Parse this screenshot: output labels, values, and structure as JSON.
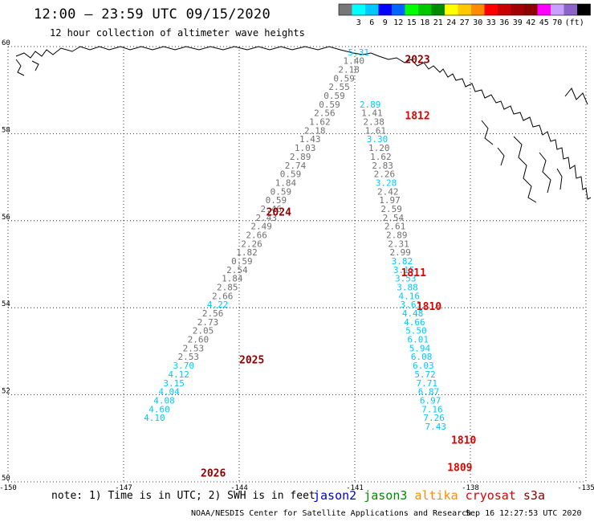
{
  "header": {
    "title": "12:00 – 23:59 UTC 09/15/2020",
    "subtitle": "12 hour collection of altimeter wave heights"
  },
  "scale": {
    "unit": "(ft)",
    "colors": [
      "#777777",
      "#00ffff",
      "#00c8ff",
      "#0000ff",
      "#0064ff",
      "#00ff00",
      "#00c800",
      "#008c00",
      "#ffff00",
      "#ffc800",
      "#ff8c00",
      "#ff0000",
      "#c80000",
      "#a00000",
      "#8c0000",
      "#ff00ff",
      "#c8a0ff",
      "#8c64c8",
      "#000000"
    ],
    "labels": [
      "3",
      "6",
      "9",
      "12",
      "15",
      "18",
      "21",
      "24",
      "27",
      "30",
      "33",
      "36",
      "39",
      "42",
      "45",
      "70"
    ]
  },
  "map": {
    "lon_range": [
      -150,
      -135
    ],
    "lat_range": [
      50,
      60
    ],
    "lon_ticks": [
      "-150",
      "-147",
      "-144",
      "-141",
      "-138",
      "-135"
    ],
    "lat_ticks": [
      "60",
      "58",
      "56",
      "54",
      "52",
      "50"
    ]
  },
  "track_left": [
    {
      "v": "5.31",
      "lat": 59.8,
      "c": "#00c8ff"
    },
    {
      "v": "1.40",
      "lat": 59.6,
      "c": "#707070"
    },
    {
      "v": "2.18",
      "lat": 59.4,
      "c": "#707070"
    },
    {
      "v": "0.59",
      "lat": 59.2,
      "c": "#707070"
    },
    {
      "v": "2.55",
      "lat": 59.0,
      "c": "#707070"
    },
    {
      "v": "0.59",
      "lat": 58.8,
      "c": "#707070"
    },
    {
      "v": "0.59",
      "lat": 58.6,
      "c": "#707070"
    },
    {
      "v": "2.56",
      "lat": 58.4,
      "c": "#707070"
    },
    {
      "v": "1.62",
      "lat": 58.2,
      "c": "#707070"
    },
    {
      "v": "2.18",
      "lat": 58.0,
      "c": "#707070"
    },
    {
      "v": "1.43",
      "lat": 57.8,
      "c": "#707070"
    },
    {
      "v": "1.03",
      "lat": 57.6,
      "c": "#707070"
    },
    {
      "v": "2.89",
      "lat": 57.4,
      "c": "#707070"
    },
    {
      "v": "2.74",
      "lat": 57.2,
      "c": "#707070"
    },
    {
      "v": "0.59",
      "lat": 57.0,
      "c": "#707070"
    },
    {
      "v": "1.84",
      "lat": 56.8,
      "c": "#707070"
    },
    {
      "v": "0.59",
      "lat": 56.6,
      "c": "#707070"
    },
    {
      "v": "0.59",
      "lat": 56.4,
      "c": "#707070"
    },
    {
      "v": "2.46",
      "lat": 56.2,
      "c": "#707070"
    },
    {
      "v": "2.43",
      "lat": 56.0,
      "c": "#707070"
    },
    {
      "v": "2.49",
      "lat": 55.8,
      "c": "#707070"
    },
    {
      "v": "2.66",
      "lat": 55.6,
      "c": "#707070"
    },
    {
      "v": "2.26",
      "lat": 55.4,
      "c": "#707070"
    },
    {
      "v": "1.82",
      "lat": 55.2,
      "c": "#707070"
    },
    {
      "v": "0.59",
      "lat": 55.0,
      "c": "#707070"
    },
    {
      "v": "2.54",
      "lat": 54.8,
      "c": "#707070"
    },
    {
      "v": "1.84",
      "lat": 54.6,
      "c": "#707070"
    },
    {
      "v": "2.85",
      "lat": 54.4,
      "c": "#707070"
    },
    {
      "v": "2.66",
      "lat": 54.2,
      "c": "#707070"
    },
    {
      "v": "4.22",
      "lat": 54.0,
      "c": "#00c8ff"
    },
    {
      "v": "2.56",
      "lat": 53.8,
      "c": "#707070"
    },
    {
      "v": "2.73",
      "lat": 53.6,
      "c": "#707070"
    },
    {
      "v": "2.05",
      "lat": 53.4,
      "c": "#707070"
    },
    {
      "v": "2.60",
      "lat": 53.2,
      "c": "#707070"
    },
    {
      "v": "2.53",
      "lat": 53.0,
      "c": "#707070"
    },
    {
      "v": "2.53",
      "lat": 52.8,
      "c": "#707070"
    },
    {
      "v": "3.70",
      "lat": 52.6,
      "c": "#00c8ff"
    },
    {
      "v": "4.12",
      "lat": 52.4,
      "c": "#00c8ff"
    },
    {
      "v": "3.15",
      "lat": 52.2,
      "c": "#00c8ff"
    },
    {
      "v": "4.04",
      "lat": 52.0,
      "c": "#00c8ff"
    },
    {
      "v": "4.08",
      "lat": 51.8,
      "c": "#00c8ff"
    },
    {
      "v": "4.60",
      "lat": 51.6,
      "c": "#00c8ff"
    },
    {
      "v": "4.10",
      "lat": 51.4,
      "c": "#00c8ff"
    }
  ],
  "track_right": [
    {
      "v": "2.89",
      "lat": 58.6,
      "c": "#00c8ff"
    },
    {
      "v": "1.41",
      "lat": 58.4,
      "c": "#707070"
    },
    {
      "v": "2.38",
      "lat": 58.2,
      "c": "#707070"
    },
    {
      "v": "1.61",
      "lat": 58.0,
      "c": "#707070"
    },
    {
      "v": "3.30",
      "lat": 57.8,
      "c": "#00c8ff"
    },
    {
      "v": "1.20",
      "lat": 57.6,
      "c": "#707070"
    },
    {
      "v": "1.62",
      "lat": 57.4,
      "c": "#707070"
    },
    {
      "v": "2.83",
      "lat": 57.2,
      "c": "#707070"
    },
    {
      "v": "2.26",
      "lat": 57.0,
      "c": "#707070"
    },
    {
      "v": "3.28",
      "lat": 56.8,
      "c": "#00c8ff"
    },
    {
      "v": "2.42",
      "lat": 56.6,
      "c": "#707070"
    },
    {
      "v": "1.97",
      "lat": 56.4,
      "c": "#707070"
    },
    {
      "v": "2.59",
      "lat": 56.2,
      "c": "#707070"
    },
    {
      "v": "2.54",
      "lat": 56.0,
      "c": "#707070"
    },
    {
      "v": "2.61",
      "lat": 55.8,
      "c": "#707070"
    },
    {
      "v": "2.89",
      "lat": 55.6,
      "c": "#707070"
    },
    {
      "v": "2.31",
      "lat": 55.4,
      "c": "#707070"
    },
    {
      "v": "2.99",
      "lat": 55.2,
      "c": "#707070"
    },
    {
      "v": "3.82",
      "lat": 55.0,
      "c": "#00c8ff"
    },
    {
      "v": "3.15",
      "lat": 54.8,
      "c": "#00c8ff"
    },
    {
      "v": "3.53",
      "lat": 54.6,
      "c": "#00c8ff"
    },
    {
      "v": "3.88",
      "lat": 54.4,
      "c": "#00c8ff"
    },
    {
      "v": "4.16",
      "lat": 54.2,
      "c": "#00c8ff"
    },
    {
      "v": "3.61",
      "lat": 54.0,
      "c": "#00c8ff"
    },
    {
      "v": "4.48",
      "lat": 53.8,
      "c": "#00c8ff"
    },
    {
      "v": "4.66",
      "lat": 53.6,
      "c": "#00c8ff"
    },
    {
      "v": "5.50",
      "lat": 53.4,
      "c": "#00c8ff"
    },
    {
      "v": "6.01",
      "lat": 53.2,
      "c": "#00c8ff"
    },
    {
      "v": "5.94",
      "lat": 53.0,
      "c": "#00c8ff"
    },
    {
      "v": "6.08",
      "lat": 52.8,
      "c": "#00c8ff"
    },
    {
      "v": "6.03",
      "lat": 52.6,
      "c": "#00c8ff"
    },
    {
      "v": "5.72",
      "lat": 52.4,
      "c": "#00c8ff"
    },
    {
      "v": "7.71",
      "lat": 52.2,
      "c": "#00c8ff"
    },
    {
      "v": "6.87",
      "lat": 52.0,
      "c": "#00c8ff"
    },
    {
      "v": "6.97",
      "lat": 51.8,
      "c": "#00c8ff"
    },
    {
      "v": "7.16",
      "lat": 51.6,
      "c": "#00c8ff"
    },
    {
      "v": "7.26",
      "lat": 51.4,
      "c": "#00c8ff"
    },
    {
      "v": "7.43",
      "lat": 51.2,
      "c": "#00c8ff"
    }
  ],
  "time_labels": [
    {
      "t": "2023",
      "c": "#8b0000"
    },
    {
      "t": "1812",
      "c": "#e00000"
    },
    {
      "t": "2024",
      "c": "#8b0000"
    },
    {
      "t": "1811",
      "c": "#e00000"
    },
    {
      "t": "1810",
      "c": "#e00000"
    },
    {
      "t": "2025",
      "c": "#8b0000"
    },
    {
      "t": "1810",
      "c": "#e00000"
    },
    {
      "t": "1809",
      "c": "#e00000"
    },
    {
      "t": "2026",
      "c": "#8b0000"
    }
  ],
  "footer": {
    "note": "note: 1) Time is in UTC; 2) SWH is in feet",
    "legend": [
      {
        "name": "jason2",
        "color": "#0000cc"
      },
      {
        "name": "jason3",
        "color": "#008c00"
      },
      {
        "name": "altika",
        "color": "#ff8c00"
      },
      {
        "name": "cryosat",
        "color": "#e00000"
      },
      {
        "name": "s3a",
        "color": "#8b0000"
      }
    ],
    "credit": "NOAA/NESDIS Center for Satellite Applications and Research",
    "timestamp": "Sep 16 12:27:53 UTC 2020"
  }
}
